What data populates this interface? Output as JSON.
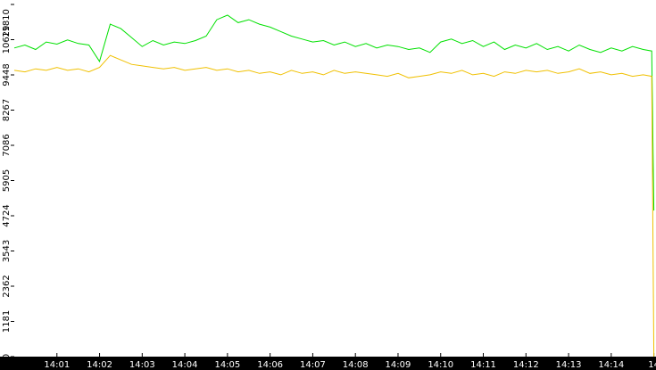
{
  "chart_data": {
    "type": "line",
    "x": [
      0,
      0.25,
      0.5,
      0.75,
      1,
      1.25,
      1.5,
      1.75,
      2,
      2.25,
      2.5,
      2.75,
      3,
      3.25,
      3.5,
      3.75,
      4,
      4.25,
      4.5,
      4.75,
      5,
      5.25,
      5.5,
      5.75,
      6,
      6.25,
      6.5,
      6.75,
      7,
      7.25,
      7.5,
      7.75,
      8,
      8.25,
      8.5,
      8.75,
      9,
      9.25,
      9.5,
      9.75,
      10,
      10.25,
      10.5,
      10.75,
      11,
      11.25,
      11.5,
      11.75,
      12,
      12.25,
      12.5,
      12.75,
      13,
      13.25,
      13.5,
      13.75,
      14,
      14.25,
      14.5,
      14.75,
      14.95,
      15
    ],
    "series": [
      {
        "color": "#00e000",
        "values": [
          10350,
          10450,
          10300,
          10550,
          10480,
          10620,
          10500,
          10450,
          9900,
          11150,
          11000,
          10700,
          10400,
          10600,
          10450,
          10550,
          10500,
          10600,
          10750,
          11300,
          11450,
          11200,
          11300,
          11150,
          11050,
          10900,
          10750,
          10650,
          10550,
          10600,
          10450,
          10550,
          10400,
          10500,
          10350,
          10450,
          10400,
          10300,
          10350,
          10200,
          10550,
          10650,
          10500,
          10600,
          10400,
          10550,
          10300,
          10450,
          10350,
          10500,
          10300,
          10400,
          10250,
          10450,
          10300,
          10200,
          10350,
          10250,
          10400,
          10300,
          10250,
          4900
        ]
      },
      {
        "color": "#f0c000",
        "values": [
          9600,
          9550,
          9650,
          9600,
          9700,
          9600,
          9650,
          9550,
          9700,
          10100,
          9950,
          9800,
          9750,
          9700,
          9650,
          9700,
          9600,
          9650,
          9700,
          9600,
          9650,
          9550,
          9600,
          9500,
          9550,
          9450,
          9600,
          9500,
          9550,
          9450,
          9600,
          9500,
          9550,
          9500,
          9450,
          9400,
          9500,
          9350,
          9400,
          9450,
          9550,
          9500,
          9600,
          9450,
          9500,
          9400,
          9550,
          9500,
          9600,
          9550,
          9600,
          9500,
          9550,
          9650,
          9500,
          9550,
          9450,
          9500,
          9400,
          9450,
          9400,
          0
        ]
      }
    ],
    "xlim": [
      0,
      15.05
    ],
    "xticks": [
      {
        "value": 1,
        "label": "14:01"
      },
      {
        "value": 2,
        "label": "14:02"
      },
      {
        "value": 3,
        "label": "14:03"
      },
      {
        "value": 4,
        "label": "14:04"
      },
      {
        "value": 5,
        "label": "14:05"
      },
      {
        "value": 6,
        "label": "14:06"
      },
      {
        "value": 7,
        "label": "14:07"
      },
      {
        "value": 8,
        "label": "14:08"
      },
      {
        "value": 9,
        "label": "14:09"
      },
      {
        "value": 10,
        "label": "14:10"
      },
      {
        "value": 11,
        "label": "14:11"
      },
      {
        "value": 12,
        "label": "14:12"
      },
      {
        "value": 13,
        "label": "14:13"
      },
      {
        "value": 14,
        "label": "14:14"
      },
      {
        "value": 15,
        "label": "14"
      }
    ],
    "ylim": [
      0,
      11810
    ],
    "yticks": [
      0,
      1181,
      2362,
      3543,
      4724,
      5905,
      7086,
      8267,
      9448,
      10629,
      11810
    ]
  }
}
